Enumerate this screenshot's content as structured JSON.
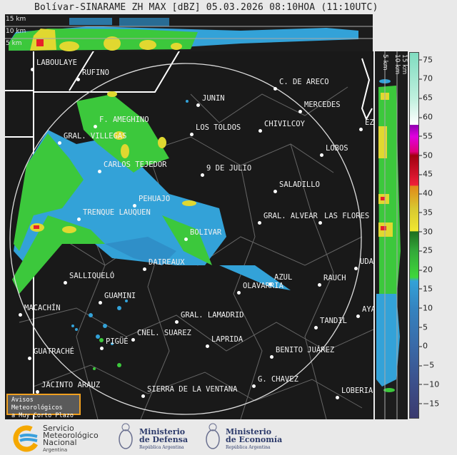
{
  "title": "Bolívar-SINARAME ZH MAX [dBZ] 05.03.2026 08:10HOA (11:10UTC)",
  "top_section": {
    "height_labels": [
      "15 km",
      "10 km",
      "5 km"
    ]
  },
  "right_section": {
    "height_labels": [
      "5 km",
      "10 km",
      "15 km"
    ]
  },
  "map": {
    "radar_site": "BOLIVAR",
    "cities": [
      "LABOULAYE",
      "RUFINO",
      "JUNIN",
      "C. DE ARECO",
      "MERCEDES",
      "CHIVILCOY",
      "F. AMEGHINO",
      "GRAL. VILLEGAS",
      "LOS TOLDOS",
      "EZE",
      "LOBOS",
      "CARLOS TEJEDOR",
      "9 DE JULIO",
      "SALADILLO",
      "PEHUAJO",
      "TRENQUE LAUQUEN",
      "GRAL. ALVEAR",
      "LAS FLORES",
      "BOLIVAR",
      "DAIREAUX",
      "UDAC",
      "SALLIQUELÓ",
      "AZUL",
      "RAUCH",
      "OLAVARRIA",
      "GUAMINI",
      "MACACHÍN",
      "AYA",
      "GRAL. LAMADRID",
      "TANDIL",
      "CNEL. SUAREZ",
      "LAPRIDA",
      "PIGÜÉ",
      "BENITO JUÁREZ",
      "GUATRACHÉ",
      "G. CHAVEZ",
      "JACINTO ARAUZ",
      "SIERRA DE LA VENTANA",
      "LOBERIA"
    ]
  },
  "colorbar": {
    "unit": "dBZ",
    "range": [
      -19,
      77
    ],
    "ticks": [
      "75",
      "70",
      "65",
      "60",
      "55",
      "50",
      "45",
      "40",
      "35",
      "30",
      "25",
      "20",
      "15",
      "10",
      "5",
      "0",
      "−5",
      "−10",
      "−15"
    ],
    "stops": [
      {
        "v": -19,
        "c": "#3b3a6e"
      },
      {
        "v": -10,
        "c": "#3c4f8a"
      },
      {
        "v": 0,
        "c": "#3a6aa8"
      },
      {
        "v": 10,
        "c": "#3484c0"
      },
      {
        "v": 17,
        "c": "#33a2d8"
      },
      {
        "v": 18,
        "c": "#3fd83a"
      },
      {
        "v": 25,
        "c": "#33a83a"
      },
      {
        "v": 30,
        "c": "#1f6e1f"
      },
      {
        "v": 30.1,
        "c": "#f0e830"
      },
      {
        "v": 36,
        "c": "#d8c830"
      },
      {
        "v": 42,
        "c": "#e08818"
      },
      {
        "v": 42.1,
        "c": "#f0203a"
      },
      {
        "v": 50,
        "c": "#a00010"
      },
      {
        "v": 51,
        "c": "#e0007a"
      },
      {
        "v": 55,
        "c": "#e000e0"
      },
      {
        "v": 58,
        "c": "#9000b0"
      },
      {
        "v": 58.1,
        "c": "#ffffff"
      },
      {
        "v": 65,
        "c": "#bff0de"
      },
      {
        "v": 77,
        "c": "#80dcc0"
      }
    ]
  },
  "notice": {
    "line1": "Avisos Meteorológicos",
    "line2": "a Muy Corto Plazo"
  },
  "logos": {
    "smn": {
      "line1": "Servicio",
      "line2": "Meteorológico",
      "line3": "Nacional",
      "line4": "Argentina"
    },
    "defensa": {
      "line1": "Ministerio",
      "line2": "de Defensa",
      "line3": "República Argentina"
    },
    "economia": {
      "line1": "Ministerio",
      "line2": "de Economía",
      "line3": "República Argentina"
    }
  },
  "colors": {
    "green": "#3cc83c",
    "blue": "#33a2d8",
    "yellow": "#f0e030",
    "red": "#e8202a",
    "background": "#191919"
  }
}
